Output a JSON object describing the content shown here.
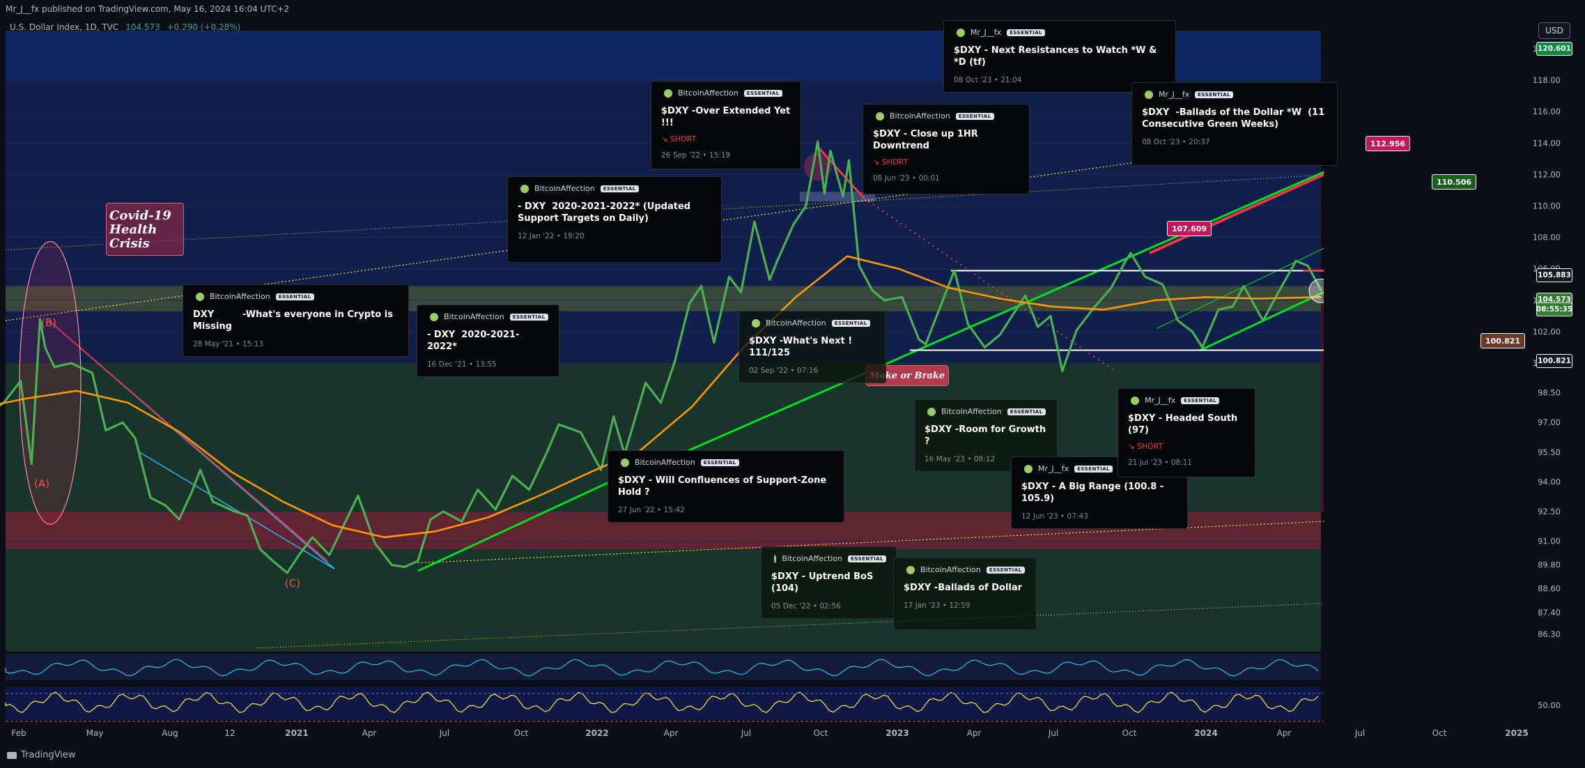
{
  "header": {
    "published": "Mr_J__fx published on TradingView.com, May 16, 2024 16:04 UTC+2"
  },
  "legend": {
    "symbol": "U.S. Dollar Index, 1D, TVC",
    "last": "104.573",
    "change": "+0.290 (+0.28%)"
  },
  "currency_button": "USD",
  "footer": {
    "brand": "TradingView"
  },
  "labels": {
    "covid": "Covid-19 Health Crisis",
    "make_or_brake": "Make or Brake",
    "wave_a": "(A)",
    "wave_b": "(B)",
    "wave_c": "(C)"
  },
  "colors": {
    "price": "#4caf50",
    "ma": "#ff9800",
    "bull": "#00e01e",
    "bear": "#f23645",
    "channel": "#29b6f6",
    "dotted": "#ffeb3b"
  },
  "chart_data": {
    "type": "line",
    "symbol": "U.S. Dollar Index, 1D, TVC",
    "ylim": [
      85.5,
      121.0
    ],
    "y_ticks": [
      86.3,
      87.4,
      88.6,
      89.8,
      91.0,
      92.5,
      94.0,
      95.5,
      97.0,
      98.5,
      100.0,
      102.0,
      104.0,
      106.0,
      108.0,
      110.0,
      112.0,
      114.0,
      116.0,
      118.0,
      120.0
    ],
    "x_ticks": [
      "Feb",
      "May",
      "Aug",
      "12",
      "2021",
      "Apr",
      "Jul",
      "Oct",
      "2022",
      "Apr",
      "Jul",
      "Oct",
      "2023",
      "Apr",
      "Jul",
      "Oct",
      "2024",
      "Apr",
      "Jul",
      "Oct",
      "2025"
    ],
    "price_tags": [
      {
        "value": "120.601",
        "color": "#0c8a3f"
      },
      {
        "value": "105.883",
        "color": "#131722"
      },
      {
        "value": "104.573",
        "color": "#2e7d32"
      },
      {
        "value": "08:55:35",
        "color": "#2e7d32"
      },
      {
        "value": "100.821",
        "color": "#131722"
      }
    ],
    "annotations": [
      {
        "value": "112.956",
        "color": "#c2185b"
      },
      {
        "value": "110.506",
        "color": "#1b5e20"
      },
      {
        "value": "107.609",
        "color": "#c2185b"
      },
      {
        "value": "100.821",
        "color": "#6d3a2a"
      }
    ],
    "series": [
      {
        "name": "U.S. Dollar Index",
        "x": [
          "2020-01-15",
          "2020-02-05",
          "2020-02-25",
          "2020-03-09",
          "2020-03-19",
          "2020-03-25",
          "2020-04-05",
          "2020-04-25",
          "2020-05-20",
          "2020-06-05",
          "2020-06-25",
          "2020-07-10",
          "2020-07-28",
          "2020-08-15",
          "2020-08-31",
          "2020-09-15",
          "2020-09-25",
          "2020-10-10",
          "2020-11-05",
          "2020-11-20",
          "2020-12-05",
          "2020-12-20",
          "2021-01-06",
          "2021-01-20",
          "2021-02-05",
          "2021-02-25",
          "2021-03-31",
          "2021-04-20",
          "2021-05-10",
          "2021-05-25",
          "2021-06-10",
          "2021-06-25",
          "2021-07-10",
          "2021-08-01",
          "2021-08-20",
          "2021-09-10",
          "2021-09-30",
          "2021-10-20",
          "2021-11-10",
          "2021-11-24",
          "2021-12-20",
          "2022-01-13",
          "2022-01-28",
          "2022-02-10",
          "2022-03-07",
          "2022-03-25",
          "2022-04-10",
          "2022-04-28",
          "2022-05-12",
          "2022-05-27",
          "2022-06-14",
          "2022-06-28",
          "2022-07-14",
          "2022-08-01",
          "2022-08-10",
          "2022-08-29",
          "2022-09-13",
          "2022-09-27",
          "2022-10-05",
          "2022-10-12",
          "2022-10-27",
          "2022-11-03",
          "2022-11-15",
          "2022-12-01",
          "2022-12-15",
          "2023-01-05",
          "2023-01-25",
          "2023-02-02",
          "2023-03-08",
          "2023-03-24",
          "2023-04-13",
          "2023-05-01",
          "2023-05-31",
          "2023-06-15",
          "2023-06-30",
          "2023-07-14",
          "2023-07-31",
          "2023-08-20",
          "2023-09-10",
          "2023-09-27",
          "2023-10-03",
          "2023-10-20",
          "2023-11-10",
          "2023-11-28",
          "2023-12-15",
          "2023-12-27",
          "2024-01-15",
          "2024-02-01",
          "2024-02-14",
          "2024-03-08",
          "2024-03-25",
          "2024-04-16",
          "2024-04-30",
          "2024-05-16"
        ],
        "values": [
          97.4,
          98.0,
          99.1,
          94.9,
          102.8,
          101.0,
          99.8,
          100.0,
          99.5,
          96.6,
          97.0,
          96.2,
          93.2,
          92.8,
          92.1,
          93.5,
          94.6,
          93.0,
          92.5,
          92.3,
          90.6,
          90.0,
          89.4,
          90.3,
          91.2,
          90.3,
          93.3,
          90.9,
          89.8,
          89.7,
          90.0,
          92.1,
          92.5,
          92.0,
          93.6,
          92.6,
          94.3,
          93.6,
          95.5,
          96.9,
          96.5,
          94.6,
          97.3,
          95.4,
          99.0,
          98.0,
          100.0,
          103.8,
          104.9,
          101.3,
          105.5,
          104.5,
          109.0,
          105.3,
          106.5,
          108.8,
          110.0,
          114.1,
          110.8,
          113.5,
          110.6,
          112.9,
          106.2,
          104.6,
          104.0,
          104.2,
          101.5,
          101.2,
          105.9,
          102.5,
          101.0,
          101.8,
          104.3,
          102.3,
          103.0,
          99.6,
          102.1,
          103.5,
          104.8,
          106.5,
          107.0,
          105.5,
          105.0,
          102.7,
          102.0,
          101.0,
          103.4,
          103.6,
          104.9,
          102.7,
          104.4,
          106.5,
          106.2,
          104.6
        ]
      },
      {
        "name": "Moving Average",
        "x": [
          "2020-01-15",
          "2020-03-01",
          "2020-05-01",
          "2020-07-01",
          "2020-09-01",
          "2020-11-01",
          "2021-01-01",
          "2021-03-01",
          "2021-05-01",
          "2021-07-01",
          "2021-09-01",
          "2021-11-01",
          "2022-01-01",
          "2022-03-01",
          "2022-05-01",
          "2022-07-01",
          "2022-09-01",
          "2022-11-01",
          "2023-01-01",
          "2023-03-01",
          "2023-05-01",
          "2023-07-01",
          "2023-09-01",
          "2023-11-01",
          "2024-01-01",
          "2024-03-01",
          "2024-05-16"
        ],
        "values": [
          97.8,
          98.2,
          98.6,
          98.0,
          96.5,
          94.5,
          93.0,
          91.8,
          91.2,
          91.5,
          92.2,
          93.3,
          94.5,
          95.6,
          97.8,
          101.0,
          104.2,
          106.8,
          106.0,
          104.8,
          104.1,
          103.6,
          103.4,
          104.0,
          104.2,
          104.1,
          104.2
        ]
      }
    ]
  },
  "ideas": [
    {
      "author": "BitcoinAffection",
      "badge": "ESSENTIAL",
      "title": "DXY         -What's everyone in Crypto is Missing",
      "date": "28 May '21 • 15:13",
      "short": ""
    },
    {
      "author": "BitcoinAffection",
      "badge": "ESSENTIAL",
      "title": "- DXY  2020-2021-2022*",
      "date": "16 Dec '21 • 13:55",
      "short": ""
    },
    {
      "author": "BitcoinAffection",
      "badge": "ESSENTIAL",
      "title": "- DXY  2020-2021-2022* (Updated Support Targets on Daily)",
      "date": "12 Jan '22 • 19:20",
      "short": ""
    },
    {
      "author": "BitcoinAffection",
      "badge": "ESSENTIAL",
      "title": "$DXY -Over Extended Yet !!!",
      "date": "26 Sep '22 • 15:19",
      "short": "SHORT"
    },
    {
      "author": "BitcoinAffection",
      "badge": "ESSENTIAL",
      "title": "$DXY -What's Next ! 111/125",
      "date": "02 Sep '22 • 07:16",
      "short": ""
    },
    {
      "author": "BitcoinAffection",
      "badge": "ESSENTIAL",
      "title": "$DXY - Close up 1HR Downtrend",
      "date": "08 Jun '23 • 00:01",
      "short": "SHORT"
    },
    {
      "author": "Mr_J__fx",
      "badge": "ESSENTIAL",
      "title": "$DXY - Next Resistances to Watch *W & *D (tf)",
      "date": "08 Oct '23 • 21:04",
      "short": ""
    },
    {
      "author": "Mr_J__fx",
      "badge": "ESSENTIAL",
      "title": "$DXY  -Ballads of the Dollar *W  (11 Consecutive Green Weeks)",
      "date": "08 Oct '23 • 20:37",
      "short": ""
    },
    {
      "author": "BitcoinAffection",
      "badge": "ESSENTIAL",
      "title": "$DXY - Will Confluences of Support-Zone Hold ?",
      "date": "27 Jun '22 • 15:42",
      "short": ""
    },
    {
      "author": "BitcoinAffection",
      "badge": "ESSENTIAL",
      "title": "$DXY -Room for Growth ?",
      "date": "16 May '23 • 08:12",
      "short": ""
    },
    {
      "author": "Mr_J__fx",
      "badge": "ESSENTIAL",
      "title": "$DXY - A Big Range (100.8 - 105.9)",
      "date": "12 Jun '23 • 07:43",
      "short": ""
    },
    {
      "author": "Mr_J__fx",
      "badge": "ESSENTIAL",
      "title": "$DXY - Headed South (97)",
      "date": "21 Jul '23 • 08:11",
      "short": "SHORT"
    },
    {
      "author": "BitcoinAffection",
      "badge": "ESSENTIAL",
      "title": "$DXY - Uptrend BoS (104)",
      "date": "05 Dec '22 • 02:56",
      "short": ""
    },
    {
      "author": "BitcoinAffection",
      "badge": "ESSENTIAL",
      "title": "$DXY -Ballads of Dollar",
      "date": "17 Jan '23 • 12:59",
      "short": ""
    }
  ],
  "oscillators": {
    "rsi_level": "50.00"
  }
}
